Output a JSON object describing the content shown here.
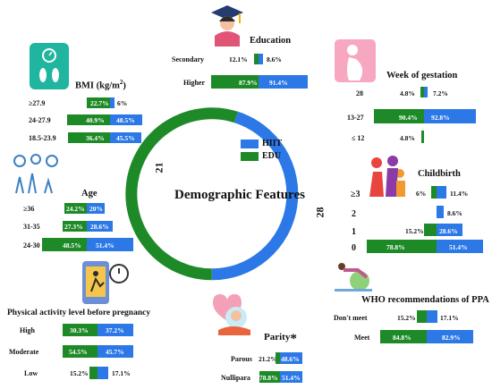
{
  "colors": {
    "hiit": "#2b78e6",
    "edu": "#1e8a27"
  },
  "center": {
    "title": "Demographic Features",
    "hiit_count": "28",
    "edu_count": "21",
    "legend": {
      "hiit": "HIIT",
      "edu": "EDU"
    }
  },
  "education": {
    "title": "Education",
    "rows": [
      {
        "label": "Secondary",
        "edu": "12.1%",
        "hiit": "8.6%"
      },
      {
        "label": "Higher",
        "edu": "87.9%",
        "hiit": "91.4%"
      }
    ]
  },
  "bmi": {
    "title": "BMI (kg/m",
    "title_sup": "2",
    "title_end": ")",
    "rows": [
      {
        "label": "≥27.9",
        "edu": "22.7%",
        "hiit": "6%"
      },
      {
        "label": "24-27.9",
        "edu": "40.9%",
        "hiit": "48.5%"
      },
      {
        "label": "18.5-23.9",
        "edu": "36.4%",
        "hiit": "45.5%"
      }
    ]
  },
  "age": {
    "title": "Age",
    "rows": [
      {
        "label": "≥36",
        "edu": "24.2%",
        "hiit": "20%"
      },
      {
        "label": "31-35",
        "edu": "27.3%",
        "hiit": "28.6%"
      },
      {
        "label": "24-30",
        "edu": "48.5%",
        "hiit": "51.4%"
      }
    ]
  },
  "pa": {
    "title": "Physical activity level before pregnancy",
    "rows": [
      {
        "label": "High",
        "edu": "30.3%",
        "hiit": "37.2%"
      },
      {
        "label": "Moderate",
        "edu": "54.5%",
        "hiit": "45.7%"
      },
      {
        "label": "Low",
        "edu": "15.2%",
        "hiit": "17.1%"
      }
    ]
  },
  "gestation": {
    "title": "Week of gestation",
    "rows": [
      {
        "label": "28",
        "edu": "4.8%",
        "hiit": "7.2%"
      },
      {
        "label": "13-27",
        "edu": "90.4%",
        "hiit": "92.8%"
      },
      {
        "label": "≤ 12",
        "edu": "4.8%",
        "hiit": ""
      }
    ]
  },
  "childbirth": {
    "title": "Childbirth",
    "rows": [
      {
        "label": "≥3",
        "edu": "6%",
        "hiit": "11.4%"
      },
      {
        "label": "2",
        "edu": "",
        "hiit": "8.6%"
      },
      {
        "label": "1",
        "edu": "15.2%",
        "hiit": "28.6%"
      },
      {
        "label": "0",
        "edu": "78.8%",
        "hiit": "51.4%"
      }
    ]
  },
  "who": {
    "title": "WHO recommendations of PPA",
    "rows": [
      {
        "label": "Don't meet",
        "edu": "15.2%",
        "hiit": "17.1%"
      },
      {
        "label": "Meet",
        "edu": "84.8%",
        "hiit": "82.9%"
      }
    ]
  },
  "parity": {
    "title": "Parity",
    "star": "*",
    "rows": [
      {
        "label": "Parous",
        "edu": "21.2%",
        "hiit": "48.6%"
      },
      {
        "label": "Nullipara",
        "edu": "78.8%",
        "hiit": "51.4%"
      }
    ]
  }
}
